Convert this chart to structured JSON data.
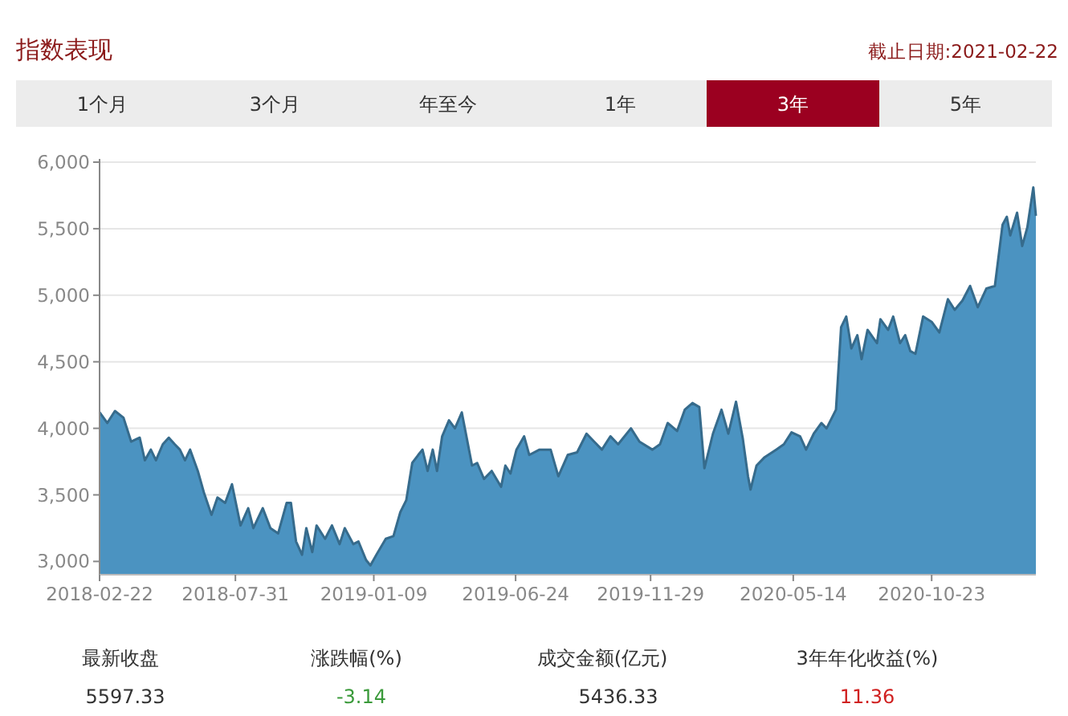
{
  "chart_data": {
    "type": "area",
    "title": "指数表现",
    "subtitle": "截止日期:2021-02-22",
    "annotations": [
      "1个月",
      "3个月",
      "年至今",
      "1年",
      "3年",
      "5年",
      "最新收盘",
      "涨跌幅(%)",
      "成交金额(亿元)",
      "3年年化收益(%)",
      "5597.33",
      "-3.14",
      "5436.33",
      "11.36"
    ],
    "series": [
      {
        "color": "#4b93c1",
        "x": [
          "2018-02-22",
          "2018-03-03",
          "2018-03-12",
          "2018-03-22",
          "2018-03-31",
          "2018-04-10",
          "2018-04-16",
          "2018-04-23",
          "2018-04-29",
          "2018-05-07",
          "2018-05-14",
          "2018-05-21",
          "2018-05-27",
          "2018-06-02",
          "2018-06-08",
          "2018-06-17",
          "2018-06-24",
          "2018-07-03",
          "2018-07-10",
          "2018-07-19",
          "2018-07-27",
          "2018-08-06",
          "2018-08-15",
          "2018-08-21",
          "2018-09-01",
          "2018-09-10",
          "2018-09-19",
          "2018-09-29",
          "2018-10-04",
          "2018-10-10",
          "2018-10-17",
          "2018-10-22",
          "2018-10-29",
          "2018-11-03",
          "2018-11-13",
          "2018-11-21",
          "2018-11-30",
          "2018-12-06",
          "2018-12-16",
          "2018-12-22",
          "2018-12-31",
          "2019-01-05",
          "2019-01-12",
          "2019-01-23",
          "2019-02-01",
          "2019-02-09",
          "2019-02-16",
          "2019-02-23",
          "2019-03-02",
          "2019-03-07",
          "2019-03-13",
          "2019-03-19",
          "2019-03-24",
          "2019-03-30",
          "2019-04-07",
          "2019-04-14",
          "2019-04-22",
          "2019-04-28",
          "2019-05-04",
          "2019-05-10",
          "2019-05-18",
          "2019-05-27",
          "2019-06-07",
          "2019-06-12",
          "2019-06-18",
          "2019-06-25",
          "2019-07-04",
          "2019-07-10",
          "2019-07-22",
          "2019-08-04",
          "2019-08-13",
          "2019-08-24",
          "2019-09-04",
          "2019-09-15",
          "2019-09-24",
          "2019-10-03",
          "2019-10-13",
          "2019-10-22",
          "2019-11-06",
          "2019-11-16",
          "2019-12-01",
          "2019-12-10",
          "2019-12-19",
          "2019-12-30",
          "2020-01-08",
          "2020-01-17",
          "2020-01-25",
          "2020-01-31",
          "2020-02-10",
          "2020-02-20",
          "2020-02-28",
          "2020-03-08",
          "2020-03-16",
          "2020-03-22",
          "2020-03-25",
          "2020-04-01",
          "2020-04-10",
          "2020-04-24",
          "2020-05-03",
          "2020-05-12",
          "2020-05-22",
          "2020-05-29",
          "2020-06-07",
          "2020-06-16",
          "2020-06-22",
          "2020-07-03",
          "2020-07-09",
          "2020-07-15",
          "2020-07-21",
          "2020-07-28",
          "2020-08-02",
          "2020-08-09",
          "2020-08-20",
          "2020-08-24",
          "2020-09-02",
          "2020-09-08",
          "2020-09-16",
          "2020-09-22",
          "2020-09-28",
          "2020-10-04",
          "2020-10-13",
          "2020-10-23",
          "2020-11-01",
          "2020-11-11",
          "2020-11-19",
          "2020-11-28",
          "2020-12-07",
          "2020-12-16",
          "2020-12-26",
          "2021-01-05",
          "2021-01-14",
          "2021-01-19",
          "2021-01-23",
          "2021-01-31",
          "2021-02-06",
          "2021-02-12",
          "2021-02-19",
          "2021-02-22"
        ],
        "values": [
          4120,
          4040,
          4130,
          4080,
          3900,
          3930,
          3760,
          3840,
          3760,
          3880,
          3930,
          3880,
          3840,
          3760,
          3840,
          3680,
          3520,
          3350,
          3480,
          3440,
          3580,
          3270,
          3400,
          3250,
          3400,
          3250,
          3210,
          3440,
          3440,
          3150,
          3050,
          3250,
          3070,
          3270,
          3170,
          3270,
          3130,
          3250,
          3130,
          3150,
          3010,
          2970,
          3050,
          3170,
          3190,
          3370,
          3460,
          3740,
          3800,
          3840,
          3680,
          3840,
          3680,
          3940,
          4060,
          4000,
          4120,
          3920,
          3720,
          3740,
          3620,
          3680,
          3560,
          3720,
          3660,
          3840,
          3940,
          3800,
          3840,
          3840,
          3640,
          3800,
          3820,
          3960,
          3900,
          3840,
          3940,
          3880,
          4000,
          3900,
          3840,
          3880,
          4040,
          3980,
          4140,
          4190,
          4160,
          3700,
          3960,
          4140,
          3960,
          4200,
          3920,
          3640,
          3540,
          3720,
          3780,
          3840,
          3880,
          3970,
          3940,
          3840,
          3960,
          4040,
          4000,
          4140,
          4760,
          4840,
          4600,
          4700,
          4520,
          4740,
          4640,
          4820,
          4740,
          4840,
          4640,
          4700,
          4580,
          4560,
          4840,
          4800,
          4720,
          4970,
          4890,
          4960,
          5070,
          4910,
          5050,
          5070,
          5530,
          5590,
          5450,
          5620,
          5370,
          5510,
          5810,
          5597.33
        ]
      }
    ],
    "xlim": [
      "2018-02-22",
      "2021-02-22"
    ],
    "xticks": [
      {
        "value": "2018-02-22",
        "label": "2018-02-22"
      },
      {
        "value": "2018-07-31",
        "label": "2018-07-31"
      },
      {
        "value": "2019-01-09",
        "label": "2019-01-09"
      },
      {
        "value": "2019-06-24",
        "label": "2019-06-24"
      },
      {
        "value": "2019-11-29",
        "label": "2019-11-29"
      },
      {
        "value": "2020-05-14",
        "label": "2020-05-14"
      },
      {
        "value": "2020-10-23",
        "label": "2020-10-23"
      }
    ],
    "ylim": [
      2900,
      6000
    ],
    "yticks": [
      {
        "value": 3000,
        "label": "3,000"
      },
      {
        "value": 3500,
        "label": "3,500"
      },
      {
        "value": 4000,
        "label": "4,000"
      },
      {
        "value": 4500,
        "label": "4,500"
      },
      {
        "value": 5000,
        "label": "5,000"
      },
      {
        "value": 5500,
        "label": "5,500"
      },
      {
        "value": 6000,
        "label": "6,000"
      }
    ],
    "grid": "y"
  }
}
